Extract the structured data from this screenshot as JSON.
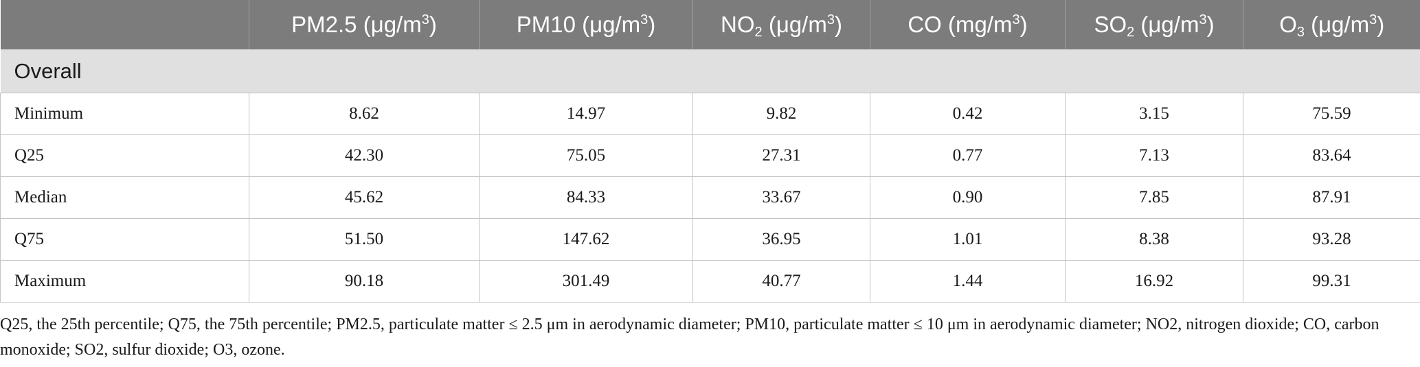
{
  "table": {
    "columns": [
      {
        "base": "",
        "sub": "",
        "sup": "",
        "unit_pre": "",
        "unit_post": ""
      },
      {
        "base": "PM2.5",
        "sub": "",
        "unit_pre": " (μg/m",
        "sup": "3",
        "unit_post": ")"
      },
      {
        "base": "PM10",
        "sub": "",
        "unit_pre": " (μg/m",
        "sup": "3",
        "unit_post": ")"
      },
      {
        "base": "NO",
        "sub": "2",
        "unit_pre": " (μg/m",
        "sup": "3",
        "unit_post": ")"
      },
      {
        "base": "CO",
        "sub": "",
        "unit_pre": " (mg/m",
        "sup": "3",
        "unit_post": ")"
      },
      {
        "base": "SO",
        "sub": "2",
        "unit_pre": " (μg/m",
        "sup": "3",
        "unit_post": ")"
      },
      {
        "base": "O",
        "sub": "3",
        "unit_pre": " (μg/m",
        "sup": "3",
        "unit_post": ")"
      }
    ],
    "section_label": "Overall",
    "rows": [
      {
        "label": "Minimum",
        "values": [
          "8.62",
          "14.97",
          "9.82",
          "0.42",
          "3.15",
          "75.59"
        ]
      },
      {
        "label": "Q25",
        "values": [
          "42.30",
          "75.05",
          "27.31",
          "0.77",
          "7.13",
          "83.64"
        ]
      },
      {
        "label": "Median",
        "values": [
          "45.62",
          "84.33",
          "33.67",
          "0.90",
          "7.85",
          "87.91"
        ]
      },
      {
        "label": "Q75",
        "values": [
          "51.50",
          "147.62",
          "36.95",
          "1.01",
          "8.38",
          "93.28"
        ]
      },
      {
        "label": "Maximum",
        "values": [
          "90.18",
          "301.49",
          "40.77",
          "1.44",
          "16.92",
          "99.31"
        ]
      }
    ]
  },
  "footnote": "Q25, the 25th percentile; Q75, the 75th percentile; PM2.5, particulate matter ≤ 2.5 μm in aerodynamic diameter; PM10, particulate matter ≤ 10 μm in aerodynamic diameter; NO2, nitrogen dioxide; CO, carbon monoxide; SO2, sulfur dioxide; O3, ozone."
}
